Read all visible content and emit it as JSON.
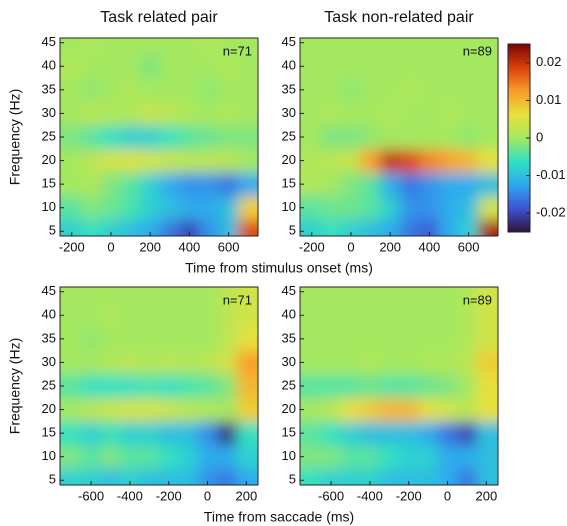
{
  "chart_data": [
    {
      "type": "heatmap",
      "title": "Task related pair",
      "ylabel": "Frequency (Hz)",
      "xlabel": "Time from stimulus onset (ms)",
      "annotation": "n=71",
      "xlim": [
        -260,
        750
      ],
      "ylim": [
        4,
        46
      ],
      "xticks": [
        -200,
        0,
        200,
        400,
        600
      ],
      "yticks": [
        5,
        10,
        15,
        20,
        25,
        30,
        35,
        40,
        45
      ],
      "x": [
        -200,
        -100,
        0,
        100,
        200,
        300,
        400,
        500,
        600,
        700
      ],
      "y": [
        5,
        10,
        15,
        20,
        25,
        30,
        35,
        40,
        45
      ],
      "z": [
        [
          -0.008,
          -0.006,
          -0.008,
          -0.01,
          -0.012,
          -0.016,
          -0.02,
          -0.014,
          -0.01,
          0.018
        ],
        [
          -0.004,
          -0.002,
          -0.003,
          -0.005,
          -0.008,
          -0.01,
          -0.012,
          -0.012,
          -0.01,
          0.008
        ],
        [
          0,
          0.001,
          -0.002,
          -0.004,
          -0.008,
          -0.012,
          -0.014,
          -0.014,
          -0.016,
          -0.012
        ],
        [
          0,
          0.002,
          0.004,
          0.005,
          0.004,
          0.003,
          0.002,
          0.002,
          0.002,
          0
        ],
        [
          -0.002,
          -0.004,
          -0.006,
          -0.008,
          -0.008,
          -0.006,
          -0.004,
          -0.003,
          -0.002,
          -0.002
        ],
        [
          0,
          0.002,
          0.001,
          0.001,
          0.003,
          0.002,
          0.001,
          0,
          0.001,
          0
        ],
        [
          0,
          -0.001,
          0,
          0.001,
          0,
          0,
          0,
          -0.001,
          0,
          0
        ],
        [
          0.001,
          0,
          0,
          0,
          -0.002,
          0,
          0,
          0,
          0.001,
          0
        ],
        [
          0,
          0.001,
          0,
          0,
          0,
          0,
          0,
          0.001,
          0,
          0
        ]
      ]
    },
    {
      "type": "heatmap",
      "title": "Task non-related pair",
      "annotation": "n=89",
      "xlim": [
        -260,
        750
      ],
      "ylim": [
        4,
        46
      ],
      "xticks": [
        -200,
        0,
        200,
        400,
        600
      ],
      "yticks": [
        5,
        10,
        15,
        20,
        25,
        30,
        35,
        40,
        45
      ],
      "x": [
        -200,
        -100,
        0,
        100,
        200,
        300,
        400,
        500,
        600,
        700
      ],
      "y": [
        5,
        10,
        15,
        20,
        25,
        30,
        35,
        40,
        45
      ],
      "z": [
        [
          -0.008,
          -0.006,
          -0.008,
          -0.01,
          -0.012,
          -0.016,
          -0.018,
          -0.012,
          -0.008,
          0.022
        ],
        [
          -0.004,
          -0.003,
          -0.003,
          -0.004,
          -0.008,
          -0.014,
          -0.014,
          -0.012,
          -0.01,
          0.004
        ],
        [
          0.001,
          0,
          -0.002,
          -0.004,
          -0.012,
          -0.016,
          -0.014,
          -0.012,
          -0.012,
          -0.01
        ],
        [
          0.001,
          0.002,
          0.003,
          0.012,
          0.02,
          0.018,
          0.014,
          0.012,
          0.01,
          0.006
        ],
        [
          0,
          -0.002,
          -0.002,
          -0.001,
          0,
          0,
          0,
          0,
          -0.001,
          0
        ],
        [
          0,
          0.001,
          0,
          0,
          0.001,
          0,
          0,
          0.001,
          0,
          0
        ],
        [
          0,
          0,
          -0.001,
          0,
          0,
          0.001,
          0,
          0,
          0,
          0
        ],
        [
          0,
          0,
          0,
          0,
          0,
          0,
          0,
          0,
          0,
          0
        ],
        [
          0,
          0,
          0,
          0,
          0,
          0,
          0,
          0,
          0,
          0
        ]
      ]
    },
    {
      "type": "heatmap",
      "ylabel": "Frequency (Hz)",
      "xlabel": "Time from saccade (ms)",
      "annotation": "n=71",
      "xlim": [
        -760,
        260
      ],
      "ylim": [
        4,
        46
      ],
      "xticks": [
        -600,
        -400,
        -200,
        0,
        200
      ],
      "yticks": [
        5,
        10,
        15,
        20,
        25,
        30,
        35,
        40,
        45
      ],
      "x": [
        -700,
        -600,
        -500,
        -400,
        -300,
        -200,
        -100,
        0,
        100,
        200
      ],
      "y": [
        5,
        10,
        15,
        20,
        25,
        30,
        35,
        40,
        45
      ],
      "z": [
        [
          -0.008,
          -0.008,
          -0.01,
          -0.008,
          -0.01,
          -0.01,
          -0.01,
          -0.014,
          -0.016,
          -0.012
        ],
        [
          -0.002,
          -0.004,
          -0.002,
          -0.004,
          -0.004,
          -0.006,
          -0.008,
          -0.012,
          -0.012,
          -0.008
        ],
        [
          -0.006,
          -0.008,
          -0.006,
          -0.008,
          -0.008,
          -0.01,
          -0.01,
          -0.014,
          -0.022,
          -0.006
        ],
        [
          0,
          0.002,
          0.003,
          0.004,
          0.004,
          0.003,
          0.002,
          0.001,
          0,
          0.008
        ],
        [
          -0.004,
          -0.006,
          -0.006,
          -0.006,
          -0.005,
          -0.006,
          -0.005,
          -0.004,
          -0.002,
          0.01
        ],
        [
          0,
          0,
          0.001,
          0.002,
          0.001,
          0.002,
          0.001,
          0.002,
          0.004,
          0.012
        ],
        [
          0,
          -0.001,
          0,
          0,
          0,
          0,
          0,
          0,
          0.002,
          0.006
        ],
        [
          0,
          0,
          0.001,
          0,
          0,
          0,
          0,
          0,
          0.002,
          0.004
        ],
        [
          0,
          0,
          0,
          0,
          0,
          0,
          0,
          0,
          0.002,
          0.004
        ]
      ]
    },
    {
      "type": "heatmap",
      "annotation": "n=89",
      "xlim": [
        -760,
        260
      ],
      "ylim": [
        4,
        46
      ],
      "xticks": [
        -600,
        -400,
        -200,
        0,
        200
      ],
      "yticks": [
        5,
        10,
        15,
        20,
        25,
        30,
        35,
        40,
        45
      ],
      "x": [
        -700,
        -600,
        -500,
        -400,
        -300,
        -200,
        -100,
        0,
        100,
        200
      ],
      "y": [
        5,
        10,
        15,
        20,
        25,
        30,
        35,
        40,
        45
      ],
      "z": [
        [
          -0.006,
          -0.008,
          -0.008,
          -0.008,
          -0.01,
          -0.01,
          -0.01,
          -0.012,
          -0.016,
          -0.01
        ],
        [
          -0.002,
          -0.002,
          -0.004,
          -0.004,
          -0.006,
          -0.008,
          -0.008,
          -0.012,
          -0.012,
          -0.01
        ],
        [
          -0.004,
          -0.006,
          -0.008,
          -0.01,
          -0.01,
          -0.01,
          -0.012,
          -0.016,
          -0.02,
          -0.01
        ],
        [
          0,
          0.002,
          0.006,
          0.008,
          0.01,
          0.01,
          0.006,
          0.004,
          0.002,
          0.006
        ],
        [
          -0.004,
          -0.004,
          -0.004,
          -0.003,
          -0.004,
          -0.004,
          -0.003,
          -0.002,
          0,
          0.006
        ],
        [
          0,
          0,
          0,
          0.001,
          0,
          0,
          0.001,
          0.001,
          0.002,
          0.008
        ],
        [
          0,
          0,
          0,
          0,
          0,
          0,
          0,
          0,
          0.001,
          0.004
        ],
        [
          0,
          0,
          0,
          0,
          0,
          0,
          0,
          0,
          0.001,
          0.004
        ],
        [
          0,
          0,
          0,
          0,
          0,
          0,
          0,
          0,
          0.001,
          0.004
        ]
      ]
    }
  ],
  "colorbar": {
    "zlim": [
      -0.025,
      0.025
    ],
    "ticks": [
      -0.02,
      -0.01,
      0,
      0.01,
      0.02
    ],
    "colors": [
      "#30123b",
      "#3e52d6",
      "#2ea8f0",
      "#30e0c4",
      "#a4e860",
      "#e8e03a",
      "#f99b2a",
      "#d8400c",
      "#7a0403"
    ]
  }
}
